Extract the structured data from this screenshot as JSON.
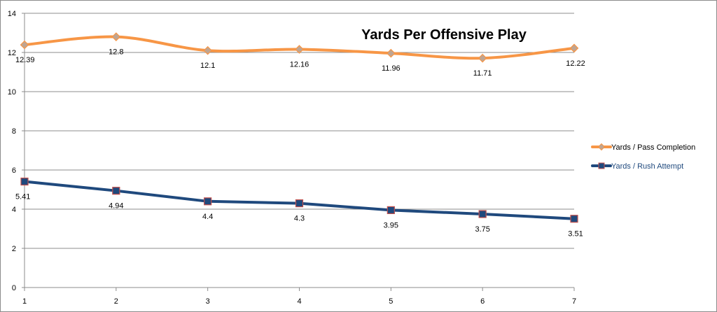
{
  "chart_data": {
    "type": "line",
    "title": "Yards Per Offensive Play",
    "xlabel": "",
    "ylabel": "",
    "x": [
      1,
      2,
      3,
      4,
      5,
      6,
      7
    ],
    "xlim": [
      1,
      7
    ],
    "ylim": [
      0,
      14
    ],
    "yticks": [
      0,
      2,
      4,
      6,
      8,
      10,
      12,
      14
    ],
    "grid": true,
    "legend_position": "right",
    "series": [
      {
        "name": "Yards / Pass Completion",
        "values": [
          12.39,
          12.8,
          12.1,
          12.16,
          11.96,
          11.71,
          12.22
        ],
        "labels": [
          "12.39",
          "12.8",
          "12.1",
          "12.16",
          "11.96",
          "11.71",
          "12.22"
        ],
        "color": "#f79646",
        "marker": "diamond",
        "marker_color": "#bfa592",
        "smooth": true,
        "legend_text_color": "#000000"
      },
      {
        "name": "Yards / Rush Attempt",
        "values": [
          5.41,
          4.94,
          4.4,
          4.3,
          3.95,
          3.75,
          3.51
        ],
        "labels": [
          "5.41",
          "4.94",
          "4.4",
          "4.3",
          "3.95",
          "3.75",
          "3.51"
        ],
        "color": "#1f497d",
        "marker": "square",
        "marker_color": "#1f497d",
        "marker_edge_color": "#c0504d",
        "smooth": false,
        "legend_text_color": "#1f497d"
      }
    ]
  }
}
